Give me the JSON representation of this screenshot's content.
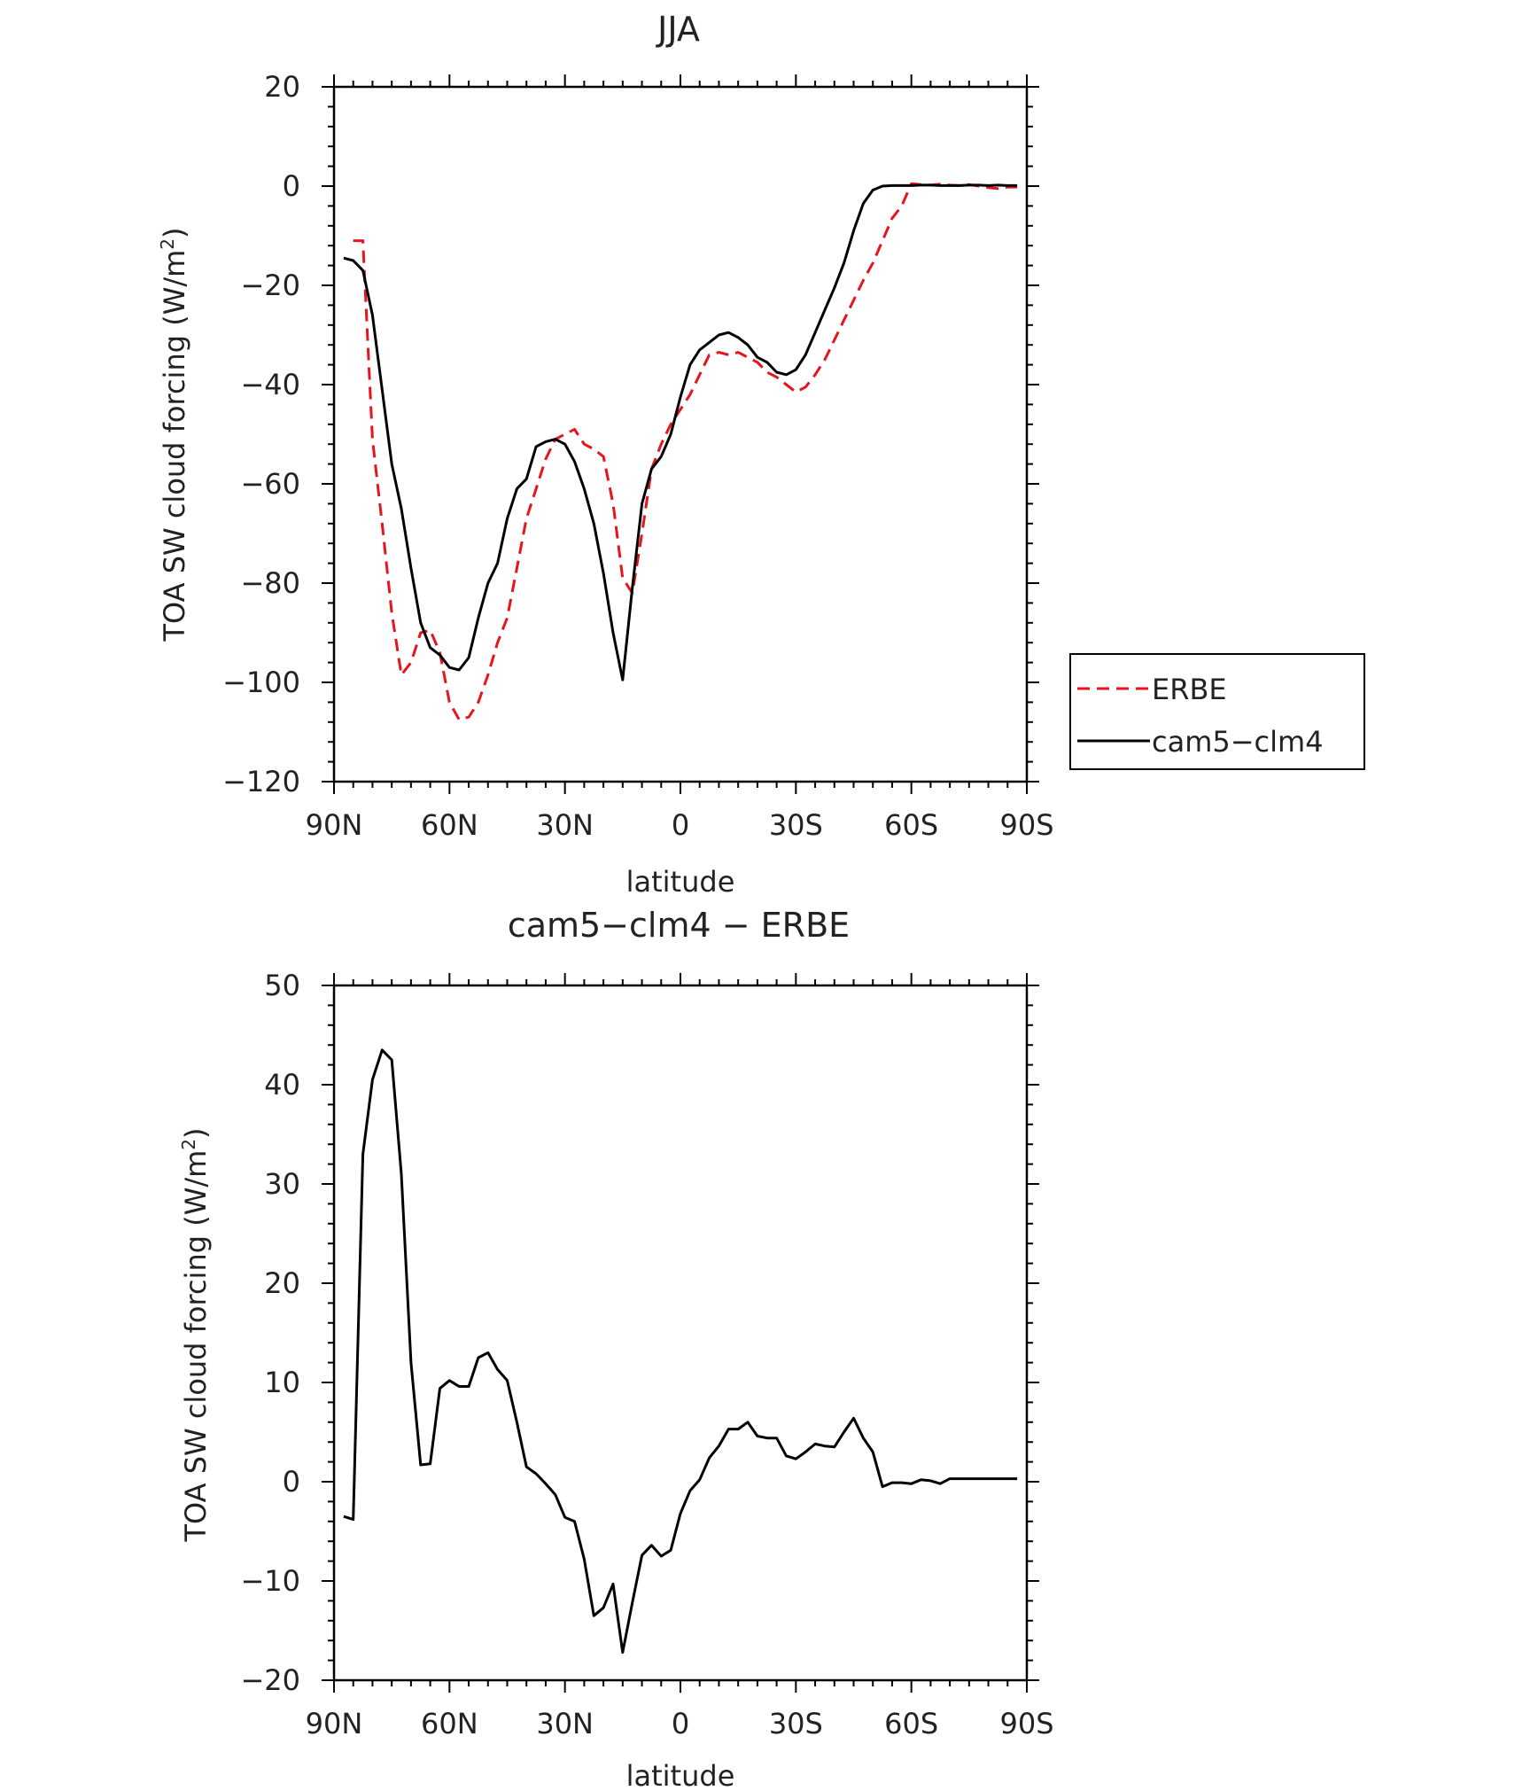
{
  "chart_data": [
    {
      "type": "line",
      "title": "JJA",
      "xlabel": "latitude",
      "ylabel_main": "TOA SW cloud forcing (W/m",
      "ylabel_sup": "2",
      "ylabel_close": ")",
      "xlim": [
        90,
        -90
      ],
      "ylim": [
        -120,
        20
      ],
      "xticks": [
        90,
        60,
        30,
        0,
        -30,
        -60,
        -90
      ],
      "xtick_labels": [
        "90N",
        "60N",
        "30N",
        "0",
        "30S",
        "60S",
        "90S"
      ],
      "yticks": [
        20,
        0,
        -20,
        -40,
        -60,
        -80,
        -100,
        -120
      ],
      "ytick_labels": [
        "20",
        "0",
        "−20",
        "−40",
        "−60",
        "−80",
        "−100",
        "−120"
      ],
      "legend": {
        "placement": "right",
        "entries": [
          "ERBE",
          "cam5−clm4"
        ]
      },
      "series": [
        {
          "name": "ERBE",
          "color": "#e8141c",
          "dash": true,
          "x": [
            85,
            82.5,
            80,
            77.5,
            75,
            72.5,
            70,
            67.5,
            65,
            62.5,
            60,
            57.5,
            55,
            52.5,
            50,
            47.5,
            45,
            42.5,
            40,
            37.5,
            35,
            32.5,
            30,
            27.5,
            25,
            22.5,
            20,
            17.5,
            15,
            12.5,
            10,
            7.5,
            5,
            2.5,
            0,
            -2.5,
            -5,
            -7.5,
            -10,
            -12.5,
            -15,
            -17.5,
            -20,
            -22.5,
            -25,
            -27.5,
            -30,
            -32.5,
            -35,
            -37.5,
            -40,
            -42.5,
            -45,
            -47.5,
            -50,
            -52.5,
            -55,
            -57.5,
            -60,
            -62.5,
            -65,
            -67.5,
            -70,
            -72.5,
            -75,
            -77.5,
            -80,
            -82.5,
            -85,
            -87.5
          ],
          "y": [
            -11,
            -11,
            -51,
            -68,
            -86,
            -98.5,
            -96,
            -90,
            -89.5,
            -94,
            -104,
            -107.5,
            -107,
            -104,
            -98.5,
            -92,
            -87,
            -77,
            -67,
            -61,
            -55,
            -51,
            -50,
            -49,
            -52,
            -53,
            -54.5,
            -64,
            -79,
            -82,
            -70,
            -57,
            -52,
            -48,
            -45,
            -42,
            -38,
            -34,
            -33.5,
            -34,
            -33.5,
            -34.5,
            -35.5,
            -37.5,
            -38.5,
            -40,
            -41.5,
            -40.5,
            -38,
            -35,
            -31,
            -27,
            -23,
            -19,
            -15.5,
            -11,
            -6.5,
            -4,
            0.5,
            0.3,
            0.2,
            0.4,
            0.2,
            0.1,
            0.3,
            0.0,
            -0.3,
            -0.5,
            -0.2,
            -0.2
          ]
        },
        {
          "name": "cam5−clm4",
          "color": "#000000",
          "dash": false,
          "x": [
            87.5,
            85,
            82.5,
            80,
            77.5,
            75,
            72.5,
            70,
            67.5,
            65,
            62.5,
            60,
            57.5,
            55,
            52.5,
            50,
            47.5,
            45,
            42.5,
            40,
            37.5,
            35,
            32.5,
            30,
            27.5,
            25,
            22.5,
            20,
            17.5,
            15,
            12.5,
            10,
            7.5,
            5,
            2.5,
            0,
            -2.5,
            -5,
            -7.5,
            -10,
            -12.5,
            -15,
            -17.5,
            -20,
            -22.5,
            -25,
            -27.5,
            -30,
            -32.5,
            -35,
            -37.5,
            -40,
            -42.5,
            -45,
            -47.5,
            -50,
            -52.5,
            -55,
            -57.5,
            -60,
            -62.5,
            -65,
            -67.5,
            -70,
            -72.5,
            -75,
            -77.5,
            -80,
            -82.5,
            -85,
            -87.5
          ],
          "y": [
            -14.5,
            -15,
            -17,
            -26,
            -41,
            -56,
            -65,
            -77,
            -88,
            -93,
            -94.5,
            -97,
            -97.5,
            -95,
            -87,
            -80,
            -76,
            -67,
            -61,
            -59,
            -52.5,
            -51.5,
            -51,
            -52,
            -55.5,
            -61,
            -68,
            -78,
            -90,
            -99.5,
            -81,
            -64,
            -57,
            -54.5,
            -50,
            -42.5,
            -36,
            -33,
            -31.5,
            -30,
            -29.5,
            -30.5,
            -32,
            -34.5,
            -35.5,
            -37.5,
            -38,
            -37,
            -34,
            -29.5,
            -25,
            -20.5,
            -15.5,
            -9,
            -3.5,
            -0.8,
            0,
            0.1,
            0.1,
            0.1,
            0.2,
            0.2,
            0.1,
            0.1,
            0.1,
            0.2,
            0.2,
            0.1,
            0.2,
            0.1,
            0.1
          ]
        }
      ]
    },
    {
      "type": "line",
      "title": "cam5−clm4 − ERBE",
      "xlabel": "latitude",
      "ylabel_main": "TOA SW cloud forcing (W/m",
      "ylabel_sup": "2",
      "ylabel_close": ")",
      "xlim": [
        90,
        -90
      ],
      "ylim": [
        -20,
        50
      ],
      "xticks": [
        90,
        60,
        30,
        0,
        -30,
        -60,
        -90
      ],
      "xtick_labels": [
        "90N",
        "60N",
        "30N",
        "0",
        "30S",
        "60S",
        "90S"
      ],
      "yticks": [
        50,
        40,
        30,
        20,
        10,
        0,
        -10,
        -20
      ],
      "ytick_labels": [
        "50",
        "40",
        "30",
        "20",
        "10",
        "0",
        "−10",
        "−20"
      ],
      "series": [
        {
          "color": "#000000",
          "dash": false,
          "x": [
            87.5,
            85,
            82.5,
            80,
            77.5,
            75,
            72.5,
            70,
            67.5,
            65,
            62.5,
            60,
            57.5,
            55,
            52.5,
            50,
            47.5,
            45,
            42.5,
            40,
            37.5,
            35,
            32.5,
            30,
            27.5,
            25,
            22.5,
            20,
            17.5,
            15,
            12.5,
            10,
            7.5,
            5,
            2.5,
            0,
            -2.5,
            -5,
            -7.5,
            -10,
            -12.5,
            -15,
            -17.5,
            -20,
            -22.5,
            -25,
            -27.5,
            -30,
            -32.5,
            -35,
            -37.5,
            -40,
            -42.5,
            -45,
            -47.5,
            -50,
            -52.5,
            -55,
            -57.5,
            -60,
            -62.5,
            -65,
            -67.5,
            -70,
            -72.5,
            -75,
            -77.5,
            -80,
            -82.5,
            -85,
            -87.5
          ],
          "y": [
            -3.5,
            -3.8,
            33,
            40.5,
            43.5,
            42.5,
            31,
            12,
            1.7,
            1.8,
            9.4,
            10.2,
            9.6,
            9.6,
            12.5,
            13,
            11.3,
            10.2,
            6,
            1.5,
            0.8,
            -0.2,
            -1.3,
            -3.6,
            -4,
            -7.8,
            -13.5,
            -12.7,
            -10.3,
            -17.2,
            -12.2,
            -7.4,
            -6.4,
            -7.5,
            -6.9,
            -3.2,
            -0.9,
            0.2,
            2.4,
            3.6,
            5.3,
            5.3,
            6,
            4.6,
            4.4,
            4.4,
            2.6,
            2.3,
            3,
            3.8,
            3.6,
            3.5,
            5,
            6.4,
            4.4,
            3,
            -0.5,
            -0.1,
            -0.1,
            -0.2,
            0.2,
            0.1,
            -0.2,
            0.3,
            0.3,
            0.3,
            0.3,
            0.3,
            0.3,
            0.3,
            0.3
          ]
        }
      ]
    }
  ]
}
